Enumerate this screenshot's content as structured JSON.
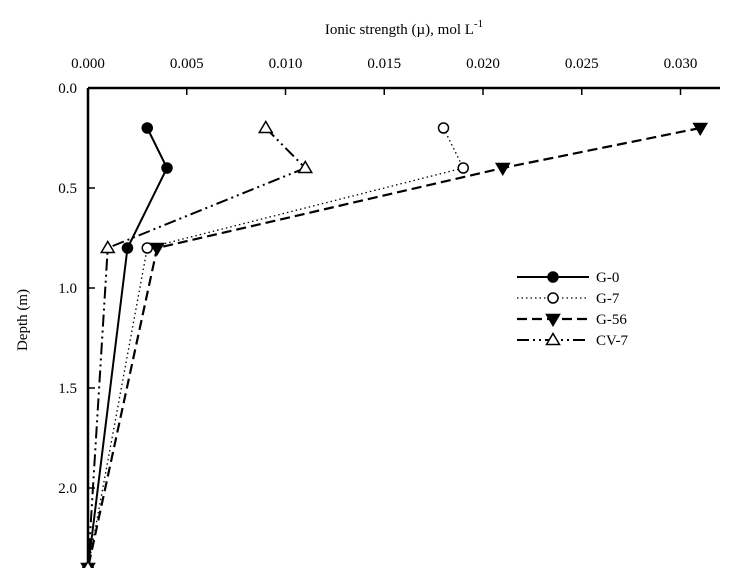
{
  "chart_data": {
    "type": "line",
    "title": "",
    "xlabel": "Ionic strength (µ), mol L",
    "xlabel_superscript": "-1",
    "ylabel": "Depth (m)",
    "x_axis_position": "top",
    "y_axis_inverted": true,
    "xlim": [
      0.0,
      0.032
    ],
    "ylim": [
      0.0,
      2.4
    ],
    "x_ticks": [
      "0.000",
      "0.005",
      "0.010",
      "0.015",
      "0.020",
      "0.025",
      "0.030"
    ],
    "x_tick_values": [
      0.0,
      0.005,
      0.01,
      0.015,
      0.02,
      0.025,
      0.03
    ],
    "y_ticks": [
      "0.0",
      "0.5",
      "1.0",
      "1.5",
      "2.0"
    ],
    "y_tick_values": [
      0.0,
      0.5,
      1.0,
      1.5,
      2.0
    ],
    "grid": false,
    "legend_position": "right",
    "series": [
      {
        "name": "G-0",
        "marker": "filled-circle",
        "dash": "solid",
        "points": [
          [
            0.003,
            0.2
          ],
          [
            0.004,
            0.4
          ],
          [
            0.002,
            0.8
          ],
          [
            0.0,
            2.4
          ]
        ]
      },
      {
        "name": "G-7",
        "marker": "open-circle",
        "dash": "dotted",
        "points": [
          [
            0.018,
            0.2
          ],
          [
            0.019,
            0.4
          ],
          [
            0.003,
            0.8
          ],
          [
            0.0,
            2.4
          ]
        ]
      },
      {
        "name": "G-56",
        "marker": "filled-triangle-down",
        "dash": "dashed",
        "points": [
          [
            0.031,
            0.2
          ],
          [
            0.021,
            0.4
          ],
          [
            0.0035,
            0.8
          ],
          [
            0.0,
            2.4
          ]
        ]
      },
      {
        "name": "CV-7",
        "marker": "open-triangle-up",
        "dash": "dash-dot-dot",
        "points": [
          [
            0.009,
            0.2
          ],
          [
            0.011,
            0.4
          ],
          [
            0.001,
            0.8
          ],
          [
            0.0,
            2.4
          ]
        ]
      }
    ]
  }
}
